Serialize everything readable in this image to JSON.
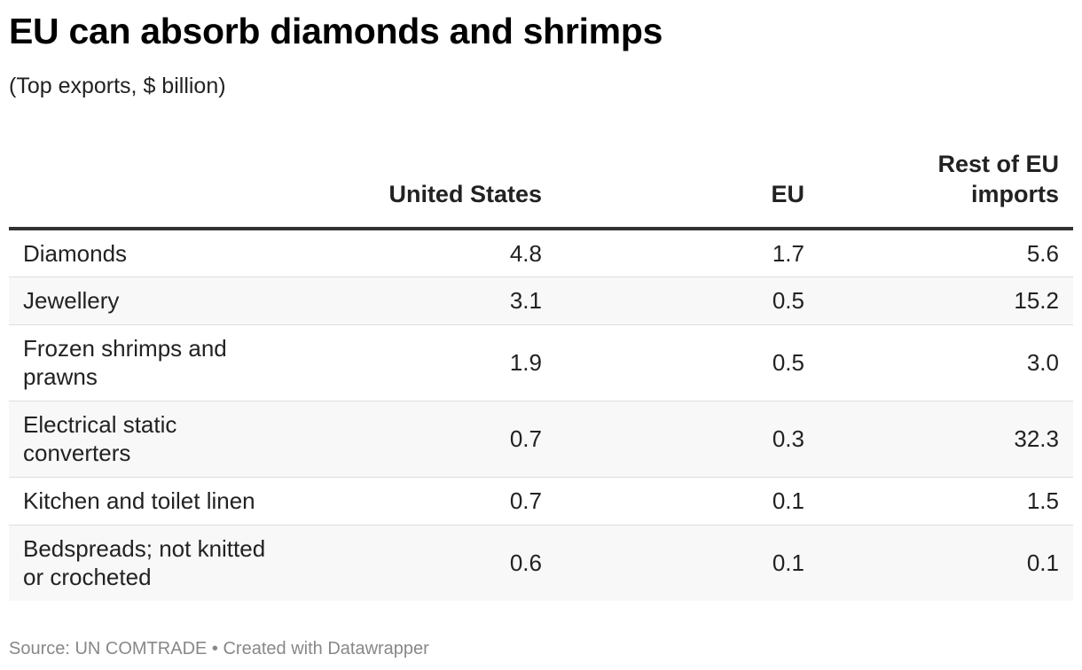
{
  "title": "EU can absorb diamonds and shrimps",
  "subtitle": "(Top exports, $ billion)",
  "source": "Source: UN COMTRADE • Created with Datawrapper",
  "chart_data": {
    "type": "table",
    "columns": [
      "",
      "United States",
      "EU",
      "Rest of EU imports"
    ],
    "rows": [
      {
        "label": "Diamonds",
        "us": "4.8",
        "eu": "1.7",
        "rest": "5.6"
      },
      {
        "label": "Jewellery",
        "us": "3.1",
        "eu": "0.5",
        "rest": "15.2"
      },
      {
        "label": "Frozen shrimps and prawns",
        "us": "1.9",
        "eu": "0.5",
        "rest": "3.0"
      },
      {
        "label": "Electrical static converters",
        "us": "0.7",
        "eu": "0.3",
        "rest": "32.3"
      },
      {
        "label": "Kitchen and toilet linen",
        "us": "0.7",
        "eu": "0.1",
        "rest": "1.5"
      },
      {
        "label": "Bedspreads; not knitted or crocheted",
        "us": "0.6",
        "eu": "0.1",
        "rest": "0.1"
      }
    ]
  }
}
